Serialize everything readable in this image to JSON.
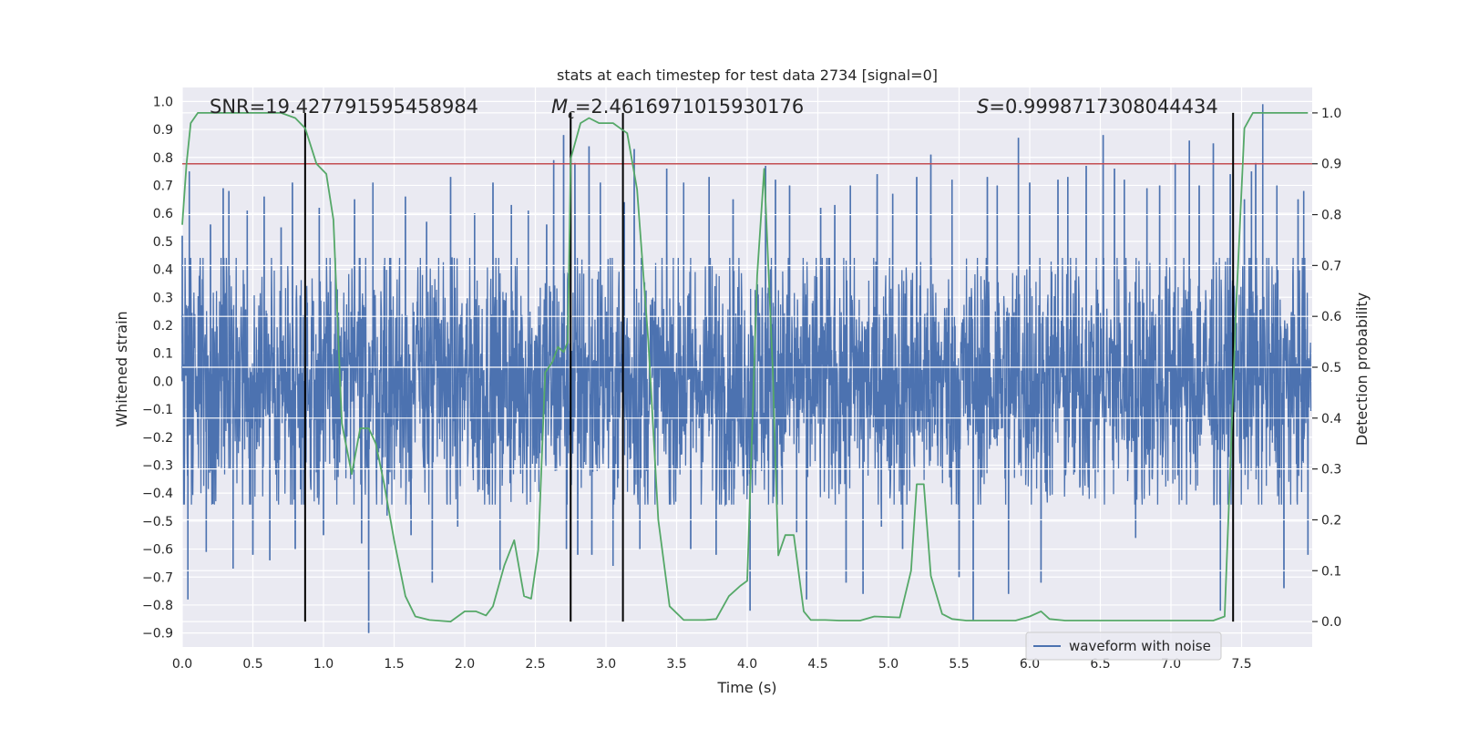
{
  "chart_data": {
    "type": "line",
    "title": "stats at each timestep for test data 2734 [signal=0]",
    "xlabel": "Time (s)",
    "ylabel_left": "Whitened strain",
    "ylabel_right": "Detection probability",
    "xlim": [
      0.0,
      8.0
    ],
    "ylim_left": [
      -0.95,
      1.05
    ],
    "ylim_right": [
      -0.05,
      1.05
    ],
    "x_ticks": [
      "0.0",
      "0.5",
      "1.0",
      "1.5",
      "2.0",
      "2.5",
      "3.0",
      "3.5",
      "4.0",
      "4.5",
      "5.0",
      "5.5",
      "6.0",
      "6.5",
      "7.0",
      "7.5"
    ],
    "y_ticks_left": [
      "1.0",
      "0.9",
      "0.8",
      "0.7",
      "0.6",
      "0.5",
      "0.4",
      "0.3",
      "0.2",
      "0.1",
      "0.0",
      "-0.1",
      "-0.2",
      "-0.3",
      "-0.4",
      "-0.5",
      "-0.6",
      "-0.7",
      "-0.8",
      "-0.9"
    ],
    "y_ticks_right": [
      "1.0",
      "0.9",
      "0.8",
      "0.7",
      "0.6",
      "0.5",
      "0.4",
      "0.3",
      "0.2",
      "0.1",
      "0.0"
    ],
    "annotations": {
      "snr_prefix": "SNR=",
      "snr_value": "19.427791595458984",
      "mc_symbol": "M",
      "mc_subscript": "c",
      "mc_value": "=2.4616971015930176",
      "s_symbol": "S",
      "s_value": "=0.9998717308044434"
    },
    "legend": {
      "entries": [
        "waveform with noise"
      ],
      "location": "lower-right"
    },
    "threshold_line": {
      "value": 0.9,
      "axis": "right",
      "color": "#c44e52"
    },
    "vertical_markers": [
      0.87,
      2.75,
      3.12,
      7.44
    ],
    "series": [
      {
        "name": "waveform with noise",
        "axis": "left",
        "color": "#4c72b0",
        "description": "whitened strain noise, approx. 8192 samples",
        "envelope_abs": 0.42,
        "spikes": [
          [
            0.0,
            0.52
          ],
          [
            0.05,
            0.75
          ],
          [
            0.04,
            -0.78
          ],
          [
            0.17,
            -0.61
          ],
          [
            0.2,
            0.56
          ],
          [
            0.29,
            0.69
          ],
          [
            0.33,
            0.68
          ],
          [
            0.36,
            -0.67
          ],
          [
            0.46,
            0.61
          ],
          [
            0.5,
            -0.62
          ],
          [
            0.58,
            0.66
          ],
          [
            0.62,
            -0.64
          ],
          [
            0.7,
            0.55
          ],
          [
            0.78,
            0.71
          ],
          [
            0.8,
            -0.6
          ],
          [
            0.97,
            0.62
          ],
          [
            1.0,
            -0.55
          ],
          [
            1.22,
            0.65
          ],
          [
            1.27,
            -0.58
          ],
          [
            1.32,
            -0.9
          ],
          [
            1.35,
            0.71
          ],
          [
            1.45,
            -0.48
          ],
          [
            1.58,
            0.66
          ],
          [
            1.62,
            -0.55
          ],
          [
            1.73,
            0.57
          ],
          [
            1.77,
            -0.72
          ],
          [
            1.9,
            0.73
          ],
          [
            1.95,
            -0.52
          ],
          [
            2.07,
            0.6
          ],
          [
            2.2,
            0.71
          ],
          [
            2.25,
            -0.68
          ],
          [
            2.33,
            0.63
          ],
          [
            2.45,
            0.61
          ],
          [
            2.58,
            0.56
          ],
          [
            2.63,
            0.79
          ],
          [
            2.7,
            0.88
          ],
          [
            2.72,
            -0.6
          ],
          [
            2.78,
            0.78
          ],
          [
            2.8,
            -0.62
          ],
          [
            2.88,
            0.84
          ],
          [
            2.9,
            -0.62
          ],
          [
            2.96,
            0.71
          ],
          [
            3.05,
            -0.66
          ],
          [
            3.13,
            0.64
          ],
          [
            3.2,
            0.83
          ],
          [
            3.24,
            -0.6
          ],
          [
            3.43,
            0.76
          ],
          [
            3.55,
            0.71
          ],
          [
            3.6,
            -0.6
          ],
          [
            3.73,
            0.73
          ],
          [
            3.78,
            -0.62
          ],
          [
            3.9,
            0.65
          ],
          [
            4.02,
            -0.82
          ],
          [
            4.13,
            0.77
          ],
          [
            4.2,
            0.72
          ],
          [
            4.3,
            0.7
          ],
          [
            4.35,
            -0.54
          ],
          [
            4.42,
            -0.78
          ],
          [
            4.52,
            0.62
          ],
          [
            4.62,
            0.63
          ],
          [
            4.7,
            -0.72
          ],
          [
            4.73,
            0.7
          ],
          [
            4.82,
            -0.76
          ],
          [
            4.92,
            0.74
          ],
          [
            4.95,
            -0.52
          ],
          [
            5.03,
            0.67
          ],
          [
            5.1,
            -0.6
          ],
          [
            5.2,
            0.73
          ],
          [
            5.3,
            0.81
          ],
          [
            5.45,
            0.72
          ],
          [
            5.5,
            -0.7
          ],
          [
            5.6,
            -0.86
          ],
          [
            5.7,
            0.73
          ],
          [
            5.77,
            0.7
          ],
          [
            5.85,
            -0.76
          ],
          [
            5.92,
            0.87
          ],
          [
            6.0,
            0.71
          ],
          [
            6.08,
            -0.72
          ],
          [
            6.2,
            0.72
          ],
          [
            6.27,
            0.73
          ],
          [
            6.4,
            0.77
          ],
          [
            6.52,
            0.88
          ],
          [
            6.6,
            0.76
          ],
          [
            6.67,
            0.72
          ],
          [
            6.75,
            -0.56
          ],
          [
            6.83,
            0.69
          ],
          [
            6.92,
            0.7
          ],
          [
            7.03,
            0.78
          ],
          [
            7.13,
            0.86
          ],
          [
            7.2,
            0.7
          ],
          [
            7.3,
            0.85
          ],
          [
            7.35,
            -0.82
          ],
          [
            7.42,
            0.74
          ],
          [
            7.52,
            0.65
          ],
          [
            7.57,
            0.75
          ],
          [
            7.6,
            0.78
          ],
          [
            7.65,
            0.99
          ],
          [
            7.75,
            0.7
          ],
          [
            7.8,
            -0.74
          ],
          [
            7.9,
            0.65
          ],
          [
            7.94,
            0.68
          ],
          [
            7.97,
            -0.62
          ]
        ]
      },
      {
        "name": "detection probability",
        "axis": "right",
        "color": "#55a868",
        "x": [
          0.0,
          0.03,
          0.06,
          0.11,
          0.2,
          0.4,
          0.6,
          0.7,
          0.8,
          0.87,
          0.95,
          1.02,
          1.07,
          1.13,
          1.2,
          1.26,
          1.32,
          1.37,
          1.43,
          1.5,
          1.58,
          1.65,
          1.75,
          1.9,
          2.0,
          2.08,
          2.15,
          2.2,
          2.28,
          2.35,
          2.42,
          2.47,
          2.52,
          2.57,
          2.62,
          2.66,
          2.7,
          2.73,
          2.75,
          2.82,
          2.88,
          2.95,
          3.05,
          3.1,
          3.15,
          3.22,
          3.3,
          3.37,
          3.45,
          3.55,
          3.7,
          3.78,
          3.87,
          3.95,
          4.0,
          4.07,
          4.12,
          4.18,
          4.22,
          4.27,
          4.33,
          4.4,
          4.45,
          4.55,
          4.65,
          4.8,
          4.9,
          5.08,
          5.16,
          5.2,
          5.25,
          5.3,
          5.38,
          5.45,
          5.55,
          5.7,
          5.9,
          6.0,
          6.08,
          6.14,
          6.25,
          6.5,
          6.8,
          7.1,
          7.3,
          7.38,
          7.42,
          7.46,
          7.52,
          7.58,
          7.65,
          7.8,
          7.97
        ],
        "y": [
          0.78,
          0.9,
          0.98,
          1.0,
          1.0,
          1.0,
          1.0,
          1.0,
          0.99,
          0.97,
          0.9,
          0.88,
          0.79,
          0.39,
          0.29,
          0.38,
          0.38,
          0.35,
          0.27,
          0.16,
          0.05,
          0.01,
          0.003,
          0.0,
          0.02,
          0.02,
          0.012,
          0.03,
          0.11,
          0.16,
          0.05,
          0.045,
          0.14,
          0.49,
          0.51,
          0.54,
          0.53,
          0.55,
          0.91,
          0.98,
          0.99,
          0.98,
          0.98,
          0.97,
          0.96,
          0.85,
          0.55,
          0.2,
          0.03,
          0.003,
          0.003,
          0.005,
          0.05,
          0.07,
          0.08,
          0.68,
          0.89,
          0.5,
          0.13,
          0.17,
          0.17,
          0.02,
          0.003,
          0.003,
          0.002,
          0.002,
          0.01,
          0.008,
          0.1,
          0.27,
          0.27,
          0.09,
          0.015,
          0.005,
          0.002,
          0.002,
          0.002,
          0.01,
          0.02,
          0.005,
          0.002,
          0.002,
          0.002,
          0.002,
          0.002,
          0.01,
          0.3,
          0.61,
          0.97,
          1.0,
          1.0,
          1.0,
          1.0
        ]
      }
    ]
  }
}
